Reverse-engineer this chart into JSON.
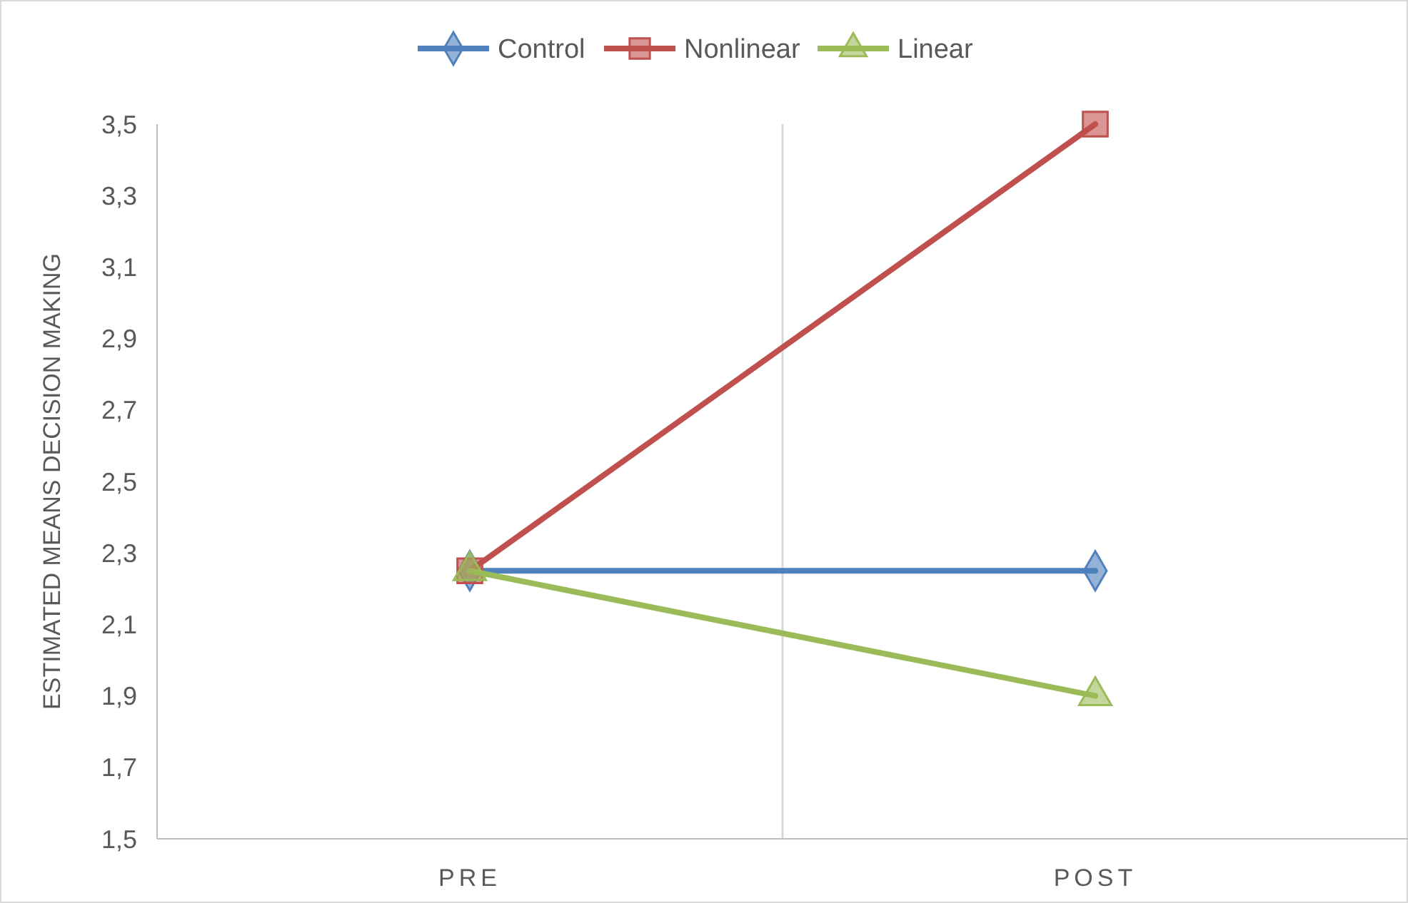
{
  "chart_data": {
    "type": "line",
    "ylabel": "ESTIMATED MEANS DECISION MAKING",
    "categories": [
      "PRE",
      "POST"
    ],
    "series": [
      {
        "name": "Control",
        "color": "#4f81bd",
        "values": [
          2.25,
          2.25
        ],
        "marker": "diamond"
      },
      {
        "name": "Nonlinear",
        "color": "#c0504d",
        "values": [
          2.25,
          3.5
        ],
        "marker": "square"
      },
      {
        "name": "Linear",
        "color": "#9bbb59",
        "values": [
          2.25,
          1.9
        ],
        "marker": "triangle"
      }
    ],
    "ylim": [
      1.5,
      3.5
    ],
    "yticks": [
      {
        "value": 1.5,
        "label": "1,5"
      },
      {
        "value": 1.7,
        "label": "1,7"
      },
      {
        "value": 1.9,
        "label": "1,9"
      },
      {
        "value": 2.1,
        "label": "2,1"
      },
      {
        "value": 2.3,
        "label": "2,3"
      },
      {
        "value": 2.5,
        "label": "2,5"
      },
      {
        "value": 2.7,
        "label": "2,7"
      },
      {
        "value": 2.9,
        "label": "2,9"
      },
      {
        "value": 3.1,
        "label": "3,1"
      },
      {
        "value": 3.3,
        "label": "3,3"
      },
      {
        "value": 3.5,
        "label": "3,5"
      }
    ],
    "grid": "x",
    "legend": "top",
    "line_style": "solid"
  }
}
